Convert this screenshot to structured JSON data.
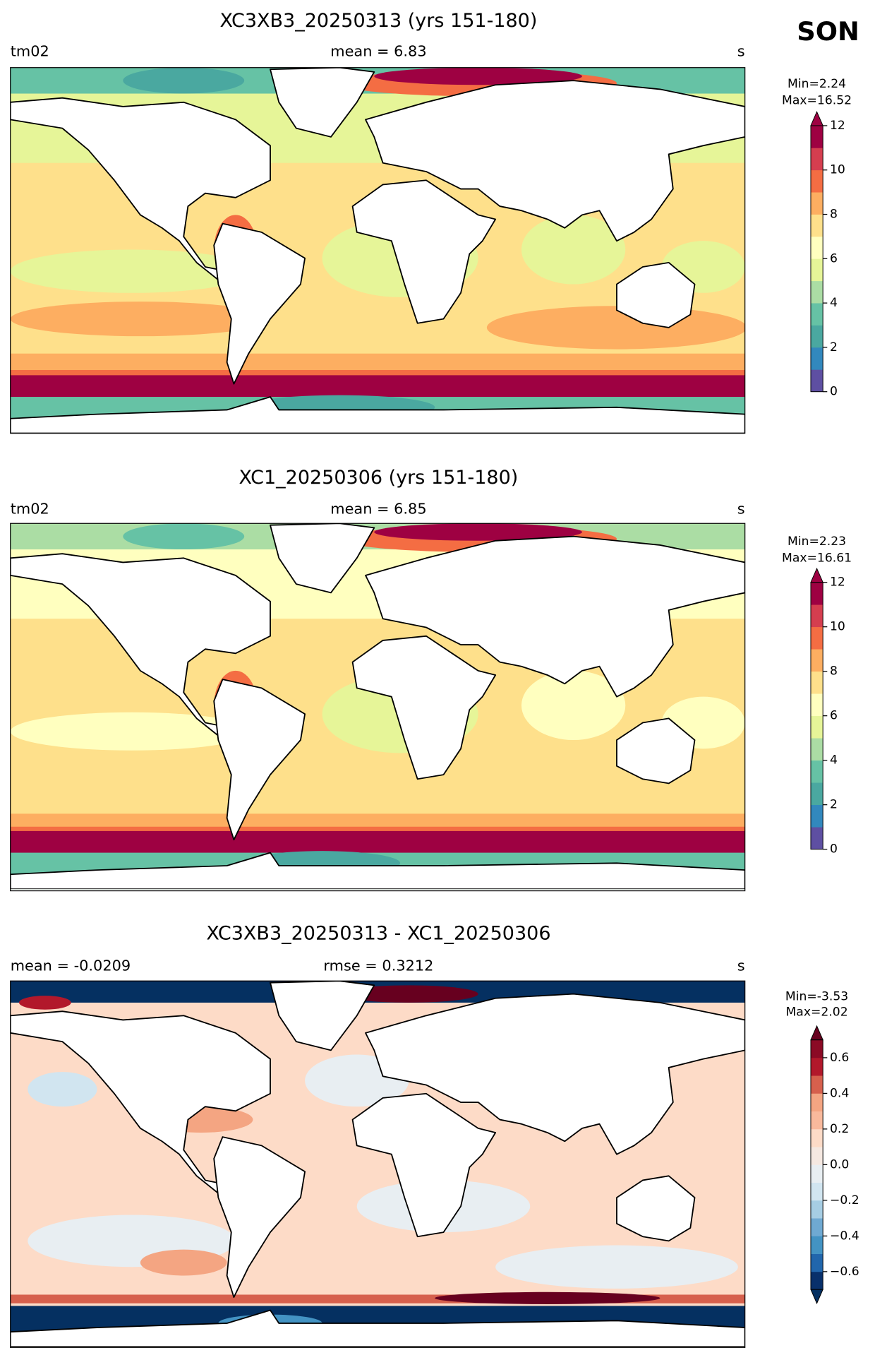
{
  "season": "SON",
  "panels": [
    {
      "title": "XC3XB3_20250313 (yrs 151-180)",
      "left": "tm02",
      "center": "mean = 6.83",
      "right": "s",
      "min_label": "Min=2.24",
      "max_label": "Max=16.52",
      "colorbar": {
        "lim": [
          0,
          12
        ],
        "ticks": [
          0,
          2,
          4,
          6,
          8,
          10,
          12
        ],
        "extend": "max",
        "over_color": "#9e0142",
        "colors": [
          "#5e4fa2",
          "#3288bd",
          "#4aa8a0",
          "#66c2a5",
          "#abdda4",
          "#e6f598",
          "#ffffbf",
          "#fee08b",
          "#fdae61",
          "#f46d43",
          "#d53e4f",
          "#9e0142"
        ]
      }
    },
    {
      "title": "XC1_20250306 (yrs 151-180)",
      "left": "tm02",
      "center": "mean = 6.85",
      "right": "s",
      "min_label": "Min=2.23",
      "max_label": "Max=16.61",
      "colorbar": {
        "lim": [
          0,
          12
        ],
        "ticks": [
          0,
          2,
          4,
          6,
          8,
          10,
          12
        ],
        "extend": "max",
        "over_color": "#9e0142",
        "colors": [
          "#5e4fa2",
          "#3288bd",
          "#4aa8a0",
          "#66c2a5",
          "#abdda4",
          "#e6f598",
          "#ffffbf",
          "#fee08b",
          "#fdae61",
          "#f46d43",
          "#d53e4f",
          "#9e0142"
        ]
      }
    },
    {
      "title": "XC3XB3_20250313 - XC1_20250306",
      "left": "mean = -0.0209",
      "center": "rmse = 0.3212",
      "right": "s",
      "min_label": "Min=-3.53",
      "max_label": "Max=2.02",
      "colorbar": {
        "lim": [
          -0.7,
          0.7
        ],
        "ticks": [
          {
            "value": -0.6,
            "label": "−0.6"
          },
          {
            "value": -0.4,
            "label": "−0.4"
          },
          {
            "value": -0.2,
            "label": "−0.2"
          },
          {
            "value": 0,
            "label": "0.0"
          },
          0.2,
          0.4,
          0.6
        ],
        "extend": "both",
        "over_color": "#67001f",
        "under_color": "#053061",
        "colors": [
          "#08306b",
          "#2166ac",
          "#4393c3",
          "#6fa9d2",
          "#a6cde3",
          "#d1e5f0",
          "#e8eef2",
          "#f5e8e1",
          "#fddbc7",
          "#f9b99c",
          "#f4a582",
          "#d6604d",
          "#b2182b",
          "#8b0a25"
        ]
      }
    }
  ]
}
